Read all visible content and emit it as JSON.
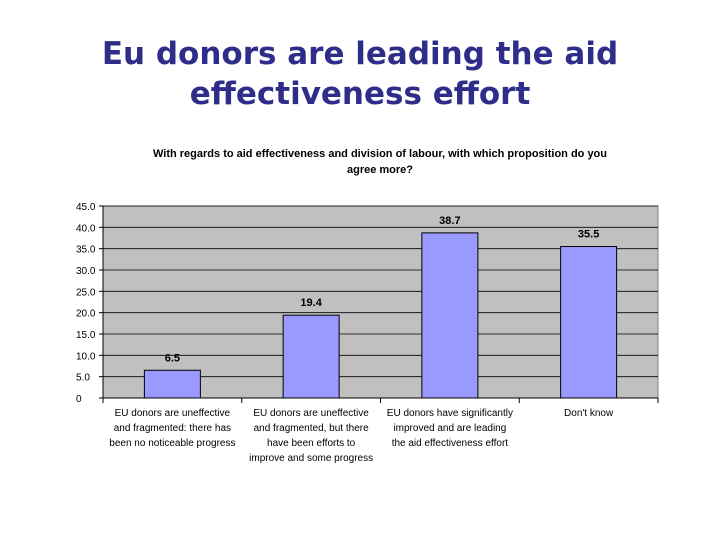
{
  "slide": {
    "title_lines": [
      "Eu donors are leading the aid",
      "effectiveness effort"
    ]
  },
  "colors": {
    "title": "#2e2e8a",
    "plot_background": "#c0c0c0",
    "bar_fill": "#9999ff",
    "bar_stroke": "#000000",
    "gridline": "#000000"
  },
  "chart_data": {
    "type": "bar",
    "title_lines": [
      "With regards to aid effectiveness and division of labour, with which proposition do you",
      "agree more?"
    ],
    "categories": [
      [
        "EU donors are uneffective",
        "and fragmented: there has",
        "been no noticeable progress"
      ],
      [
        "EU donors are uneffective",
        "and fragmented, but there",
        "have been efforts to",
        "improve and some progress"
      ],
      [
        "EU donors have significantly",
        "improved and are leading",
        "the aid effectiveness effort"
      ],
      [
        "Don't know"
      ]
    ],
    "values": [
      6.5,
      19.4,
      38.7,
      35.5
    ],
    "value_labels": [
      "6.5",
      "19.4",
      "38.7",
      "35.5"
    ],
    "ylim": [
      0,
      45
    ],
    "y_ticks": [
      {
        "value": 45,
        "label": "45.0"
      },
      {
        "value": 40,
        "label": "40.0"
      },
      {
        "value": 35,
        "label": "35.0"
      },
      {
        "value": 30,
        "label": "30.0"
      },
      {
        "value": 25,
        "label": "25.0"
      },
      {
        "value": 20,
        "label": "20.0"
      },
      {
        "value": 15,
        "label": "15.0"
      },
      {
        "value": 10,
        "label": "10.0"
      },
      {
        "value": 5,
        "label": "5.0"
      },
      {
        "value": 0,
        "label": "0"
      }
    ],
    "gridlines": "horizontal",
    "legend": "none"
  }
}
